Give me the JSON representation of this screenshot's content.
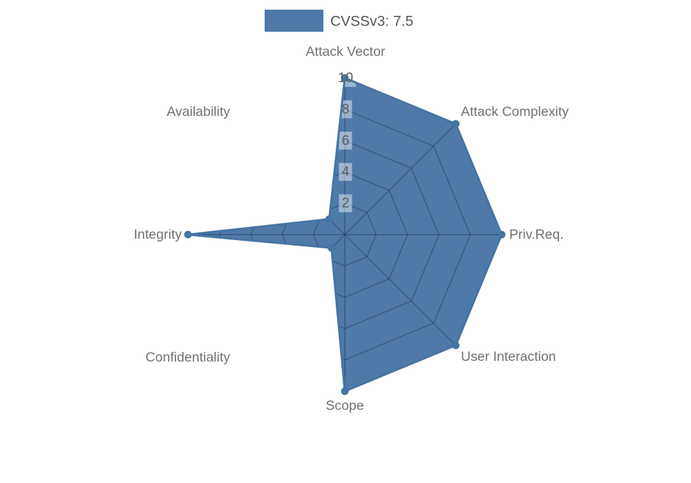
{
  "legend": {
    "series_label": "CVSSv3: 7.5"
  },
  "colors": {
    "series_fill": "#4e79a9",
    "series_border": "#4674a3",
    "grid_line": "rgba(23,43,66,0.42)",
    "tick_backdrop": "rgba(255,255,255,0.45)",
    "axis_label": "#717171",
    "tick_label": "#5d5d5d",
    "legend_label": "#565656"
  },
  "chart_data": {
    "type": "radar",
    "title": "",
    "legend_position": "top",
    "grid": "polygon",
    "categories": [
      "Attack Vector",
      "Attack Complexity",
      "Priv.Req.",
      "User Interaction",
      "Scope",
      "Confidentiality",
      "Integrity",
      "Availability"
    ],
    "series": [
      {
        "name": "CVSSv3: 7.5",
        "values": [
          10,
          10,
          10,
          10,
          10,
          1.2,
          10,
          1.4
        ]
      }
    ],
    "scale": {
      "min": 0,
      "max": 10,
      "step": 2,
      "tick_labels": [
        "2",
        "4",
        "6",
        "8",
        "10"
      ]
    }
  }
}
